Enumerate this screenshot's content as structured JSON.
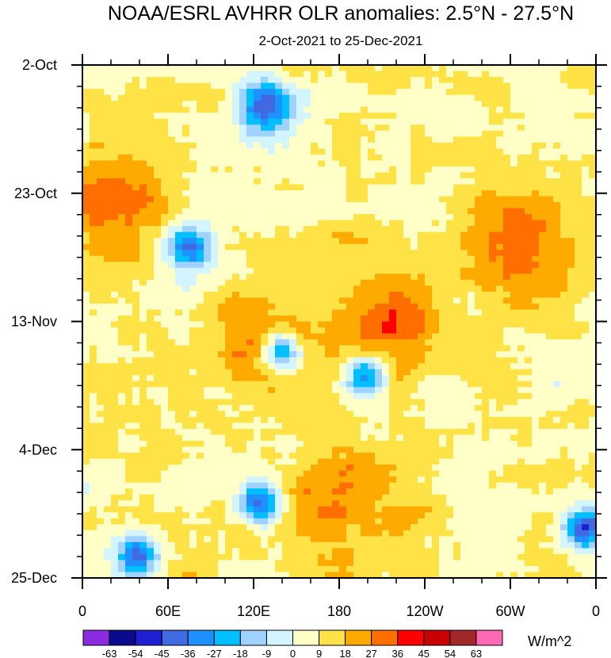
{
  "chart_data": {
    "type": "heatmap",
    "title": "NOAA/ESRL AVHRR OLR anomalies: 2.5°N - 27.5°N",
    "subtitle": "2-Oct-2021 to 25-Dec-2021",
    "xlabel": "",
    "ylabel": "",
    "x_ticks": [
      "0",
      "60E",
      "120E",
      "180",
      "120W",
      "60W",
      "0"
    ],
    "x_range": [
      0,
      360
    ],
    "y_ticks": [
      "2-Oct",
      "23-Oct",
      "13-Nov",
      "4-Dec",
      "25-Dec"
    ],
    "colorbar": {
      "labels": [
        "-63",
        "-54",
        "-45",
        "-36",
        "-27",
        "-18",
        "-9",
        "0",
        "9",
        "18",
        "27",
        "36",
        "45",
        "54",
        "63"
      ],
      "colors": [
        "#8a2be2",
        "#0a0a8c",
        "#1e1ed2",
        "#4169e1",
        "#1e90ff",
        "#00bfff",
        "#a0d2ff",
        "#d2f5ff",
        "#ffffc8",
        "#ffe246",
        "#ffaa00",
        "#ff6e00",
        "#ff0000",
        "#c80000",
        "#a02828",
        "#ff69b4"
      ],
      "units": "W/m^2"
    }
  }
}
